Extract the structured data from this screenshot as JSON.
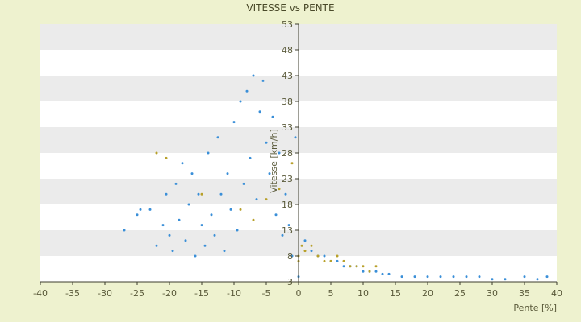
{
  "chart_data": {
    "type": "scatter",
    "title": "VITESSE vs PENTE",
    "xlabel": "Pente [%]",
    "ylabel": "Vitesse [km/h]",
    "xlim": [
      -40,
      40
    ],
    "ylim": [
      3,
      53
    ],
    "x_ticks": [
      -40,
      -35,
      -30,
      -25,
      -20,
      -15,
      -10,
      -5,
      0,
      5,
      10,
      15,
      20,
      25,
      30,
      35,
      40
    ],
    "y_ticks": [
      3,
      8,
      13,
      18,
      23,
      28,
      33,
      38,
      43,
      48,
      53
    ],
    "grid": "alternating horizontal bands",
    "legend": "none",
    "colors": {
      "background": "#eef2cf",
      "band_light": "#ffffff",
      "band_dark": "#ebebeb",
      "axis": "#3c3c2c",
      "series_main": "#3a8fd8",
      "series_secondary": "#b8a02a"
    },
    "series": [
      {
        "color": "#3a8fd8",
        "points": [
          [
            -27,
            13
          ],
          [
            -25,
            16
          ],
          [
            -24.5,
            17
          ],
          [
            -23,
            17
          ],
          [
            -22,
            10
          ],
          [
            -21,
            14
          ],
          [
            -20.5,
            20
          ],
          [
            -20,
            12
          ],
          [
            -19.5,
            9
          ],
          [
            -19,
            22
          ],
          [
            -18.5,
            15
          ],
          [
            -18,
            26
          ],
          [
            -17.5,
            11
          ],
          [
            -17,
            18
          ],
          [
            -16.5,
            24
          ],
          [
            -16,
            8
          ],
          [
            -15.5,
            20
          ],
          [
            -15,
            14
          ],
          [
            -14.5,
            10
          ],
          [
            -14,
            28
          ],
          [
            -13.5,
            16
          ],
          [
            -13,
            12
          ],
          [
            -12.5,
            31
          ],
          [
            -12,
            20
          ],
          [
            -11.5,
            9
          ],
          [
            -11,
            24
          ],
          [
            -10.5,
            17
          ],
          [
            -10,
            34
          ],
          [
            -9.5,
            13
          ],
          [
            -9,
            38
          ],
          [
            -8.5,
            22
          ],
          [
            -8,
            40
          ],
          [
            -7.5,
            27
          ],
          [
            -7,
            43
          ],
          [
            -6.5,
            19
          ],
          [
            -6,
            36
          ],
          [
            -5.5,
            42
          ],
          [
            -5,
            30
          ],
          [
            -4.5,
            24
          ],
          [
            -4,
            35
          ],
          [
            -3.5,
            16
          ],
          [
            -3,
            28
          ],
          [
            -2.5,
            12
          ],
          [
            -2,
            20
          ],
          [
            -1.5,
            14
          ],
          [
            -1,
            8
          ],
          [
            -0.5,
            31
          ],
          [
            0,
            4
          ],
          [
            1,
            11
          ],
          [
            2,
            9
          ],
          [
            3,
            8
          ],
          [
            4,
            8
          ],
          [
            5,
            7
          ],
          [
            6,
            7
          ],
          [
            7,
            6
          ],
          [
            8,
            6
          ],
          [
            9,
            6
          ],
          [
            10,
            5
          ],
          [
            11,
            5
          ],
          [
            12,
            5
          ],
          [
            13,
            4.5
          ],
          [
            14,
            4.5
          ],
          [
            16,
            4
          ],
          [
            18,
            4
          ],
          [
            20,
            4
          ],
          [
            22,
            4
          ],
          [
            24,
            4
          ],
          [
            26,
            4
          ],
          [
            28,
            4
          ],
          [
            30,
            3.5
          ],
          [
            32,
            3.5
          ],
          [
            35,
            4
          ],
          [
            37,
            3.5
          ],
          [
            38.5,
            4
          ]
        ]
      },
      {
        "color": "#b8a02a",
        "points": [
          [
            -22,
            28
          ],
          [
            -20.5,
            27
          ],
          [
            -15,
            20
          ],
          [
            -9,
            17
          ],
          [
            -7,
            15
          ],
          [
            -5,
            19
          ],
          [
            -3,
            21
          ],
          [
            -1,
            26
          ],
          [
            0,
            8
          ],
          [
            0,
            7
          ],
          [
            0.5,
            10
          ],
          [
            1,
            9
          ],
          [
            2,
            10
          ],
          [
            3,
            8
          ],
          [
            4,
            7
          ],
          [
            5,
            7
          ],
          [
            6,
            8
          ],
          [
            7,
            7
          ],
          [
            8,
            6
          ],
          [
            9,
            6
          ],
          [
            10,
            6
          ],
          [
            11,
            5
          ],
          [
            12,
            6
          ]
        ]
      }
    ]
  }
}
